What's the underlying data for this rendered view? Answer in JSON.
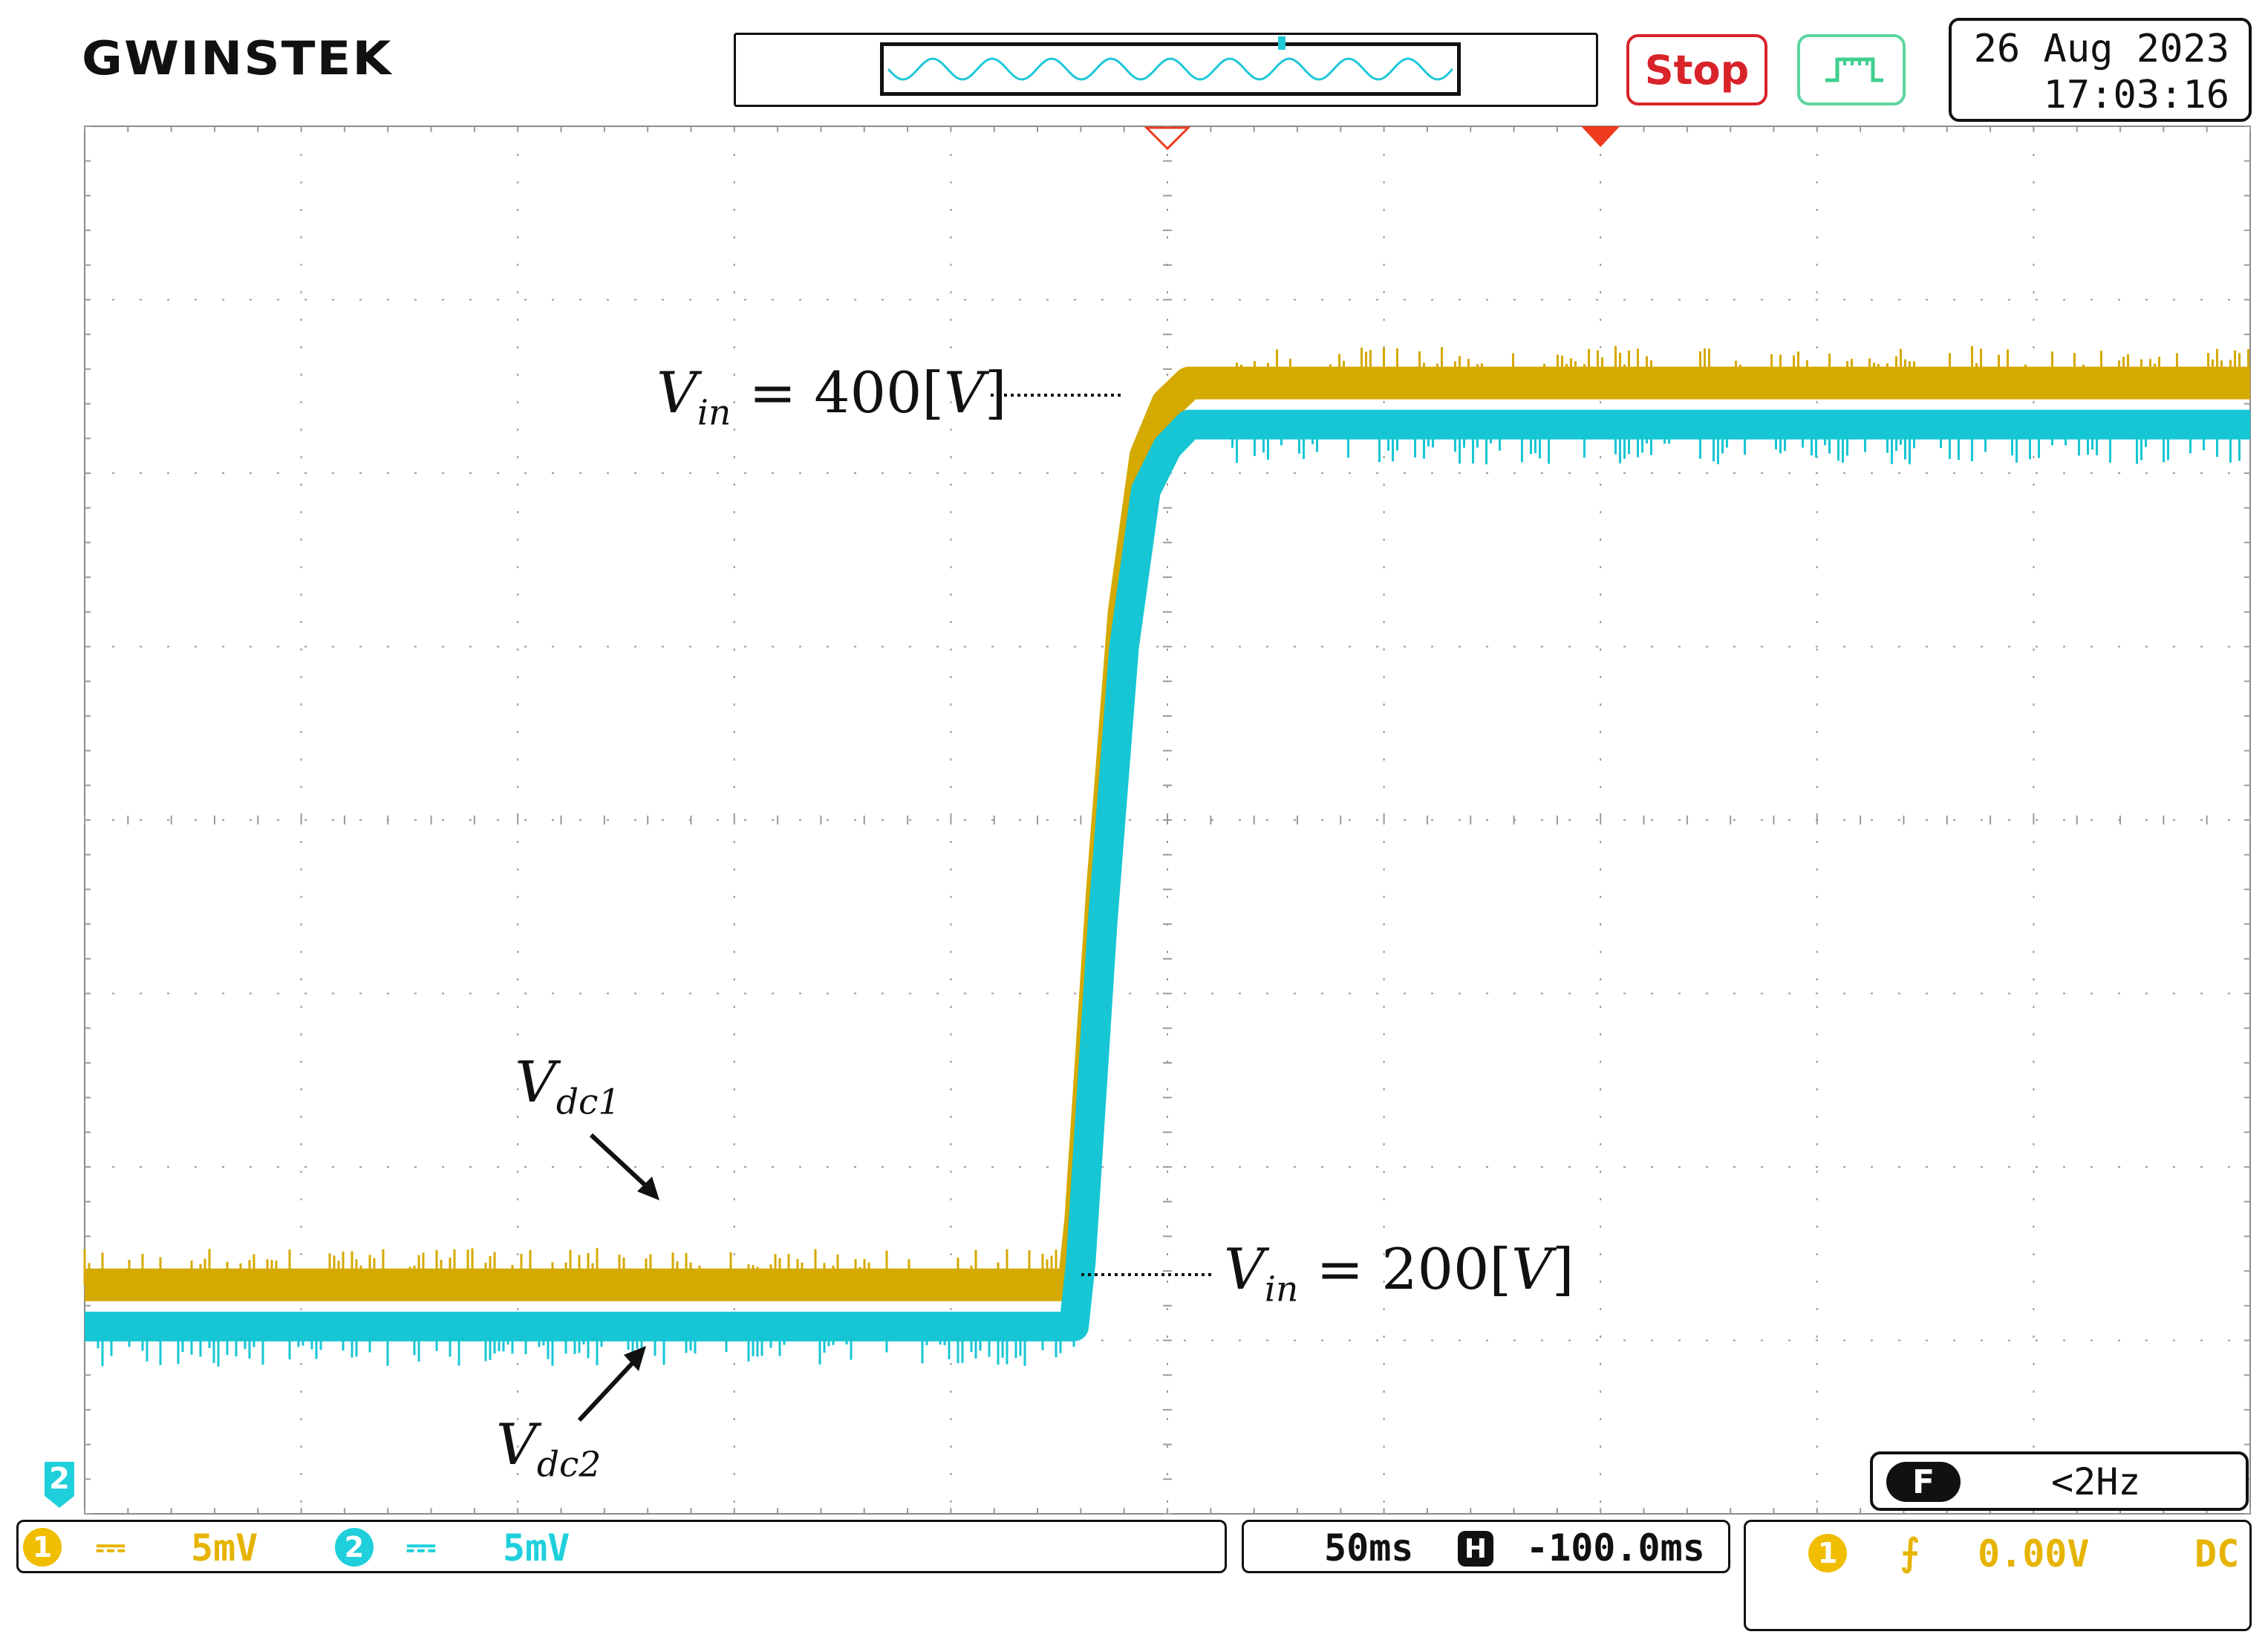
{
  "brand": "GWINSTEK",
  "status": {
    "run_label": "Stop"
  },
  "datetime": {
    "date": "26 Aug 2023",
    "time": "17:03:16"
  },
  "annotations": {
    "vin_high": {
      "var": "V",
      "sub": "in",
      "eq": " = 400[",
      "unit": "V",
      "close": "]"
    },
    "vin_low": {
      "var": "V",
      "sub": "in",
      "eq": " = 200[",
      "unit": "V",
      "close": "]"
    },
    "vdc1": {
      "var": "V",
      "sub": "dc1"
    },
    "vdc2": {
      "var": "V",
      "sub": "dc2"
    }
  },
  "channel_marker": "2",
  "trigger_freq": {
    "badge": "F",
    "value": "<2Hz"
  },
  "channels": [
    {
      "num": "1",
      "coupling_symbol": "⎓",
      "scale": "5mV",
      "color": "#e6b400"
    },
    {
      "num": "2",
      "coupling_symbol": "⎓",
      "scale": "5mV",
      "color": "#1fd0dc"
    }
  ],
  "timebase": {
    "scale": "50ms",
    "h_badge": "H",
    "position": "-100.0ms"
  },
  "trigger": {
    "source": "1",
    "slope_symbol": "⨍",
    "level": "0.00V",
    "coupling": "DC"
  },
  "colors": {
    "ch1": "#d4a900",
    "ch2": "#16c6d4",
    "grid": "#9a9a9a",
    "trigger_marker": "#ee3b1f"
  },
  "chart_data": {
    "type": "line",
    "title": "",
    "xlabel": "",
    "ylabel": "",
    "grid": true,
    "xlim": [
      -450,
      50
    ],
    "x_unit": "ms",
    "ylim": [
      -3.8,
      4.2
    ],
    "y_unit": "div",
    "series": [
      {
        "name": "V_dc1",
        "x": [
          -450,
          -221.6,
          -220,
          -215,
          -210,
          -205,
          -200,
          -195,
          -185,
          50
        ],
        "y": [
          -2.48,
          -2.48,
          -2.1,
          -0.2,
          1.4,
          2.3,
          2.6,
          2.72,
          2.72,
          2.72
        ]
      },
      {
        "name": "V_dc2",
        "x": [
          -450,
          -221.6,
          -220,
          -215,
          -210,
          -205,
          -200,
          -195,
          -185,
          50
        ],
        "y": [
          -2.72,
          -2.72,
          -2.35,
          -0.4,
          1.2,
          2.1,
          2.35,
          2.48,
          2.48,
          2.48
        ]
      }
    ]
  }
}
